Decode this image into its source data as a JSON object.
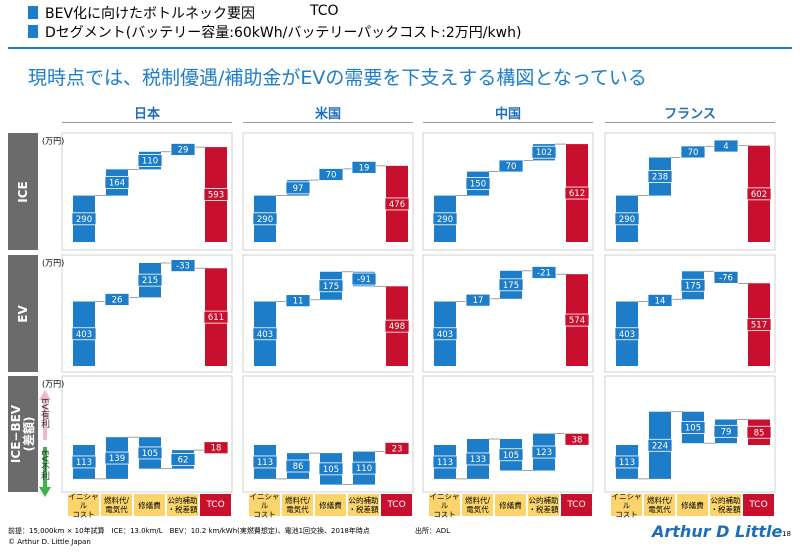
{
  "header": {
    "title": "BEV化に向けたボトルネック要因",
    "title_right": "TCO",
    "subtitle": "Dセグメント(バッテリー容量:60kWh/バッテリーパックコスト:2万円/kwh)",
    "headline": "現時点では、税制優遇/補助金がEVの需要を下支えする構図となっている"
  },
  "chart_data": {
    "type": "waterfall",
    "unit": "(万円)",
    "categories": [
      "イニシャル\nコスト",
      "燃料代/\n電気代",
      "修繕費",
      "公的補助\n・税差額",
      "TCO"
    ],
    "columns": [
      "日本",
      "米国",
      "中国",
      "フランス"
    ],
    "arrow_up": "EV有利",
    "arrow_down": "EV不利",
    "rows": [
      {
        "label": "ICE",
        "panels": [
          {
            "values": [
              290,
              164,
              110,
              29,
              593
            ]
          },
          {
            "values": [
              290,
              97,
              70,
              19,
              476
            ]
          },
          {
            "values": [
              290,
              150,
              70,
              102,
              612
            ]
          },
          {
            "values": [
              290,
              238,
              70,
              4,
              602
            ]
          }
        ]
      },
      {
        "label": "EV",
        "panels": [
          {
            "values": [
              403,
              26,
              215,
              -33,
              611
            ]
          },
          {
            "values": [
              403,
              11,
              175,
              -91,
              498
            ]
          },
          {
            "values": [
              403,
              17,
              175,
              -21,
              574
            ]
          },
          {
            "values": [
              403,
              14,
              175,
              -76,
              517
            ]
          }
        ]
      },
      {
        "label": "ICE−BEV\n(差額)",
        "panels": [
          {
            "values": [
              -113,
              139,
              -105,
              62,
              -18
            ],
            "value_labels": [
              "113",
              "139",
              "105",
              "62",
              "18"
            ]
          },
          {
            "values": [
              -113,
              86,
              -105,
              110,
              -23
            ],
            "value_labels": [
              "113",
              "86",
              "105",
              "110",
              "23"
            ]
          },
          {
            "values": [
              -113,
              133,
              -105,
              123,
              38
            ],
            "value_labels": [
              "113",
              "133",
              "105",
              "123",
              "38"
            ]
          },
          {
            "values": [
              -113,
              224,
              -105,
              79,
              85
            ],
            "value_labels": [
              "113",
              "224",
              "105",
              "79",
              "85"
            ]
          }
        ]
      }
    ]
  },
  "footer": {
    "note": "前提：15,000km × 10年試算　ICE：13.0km/L　BEV：10.2 km/kWh(実燃費想定)、電池1回交換、2018年時点",
    "copyright": "© Arthur D. Little Japan",
    "source": "出所：ADL",
    "logo": "Arthur D Little",
    "page": "18"
  }
}
